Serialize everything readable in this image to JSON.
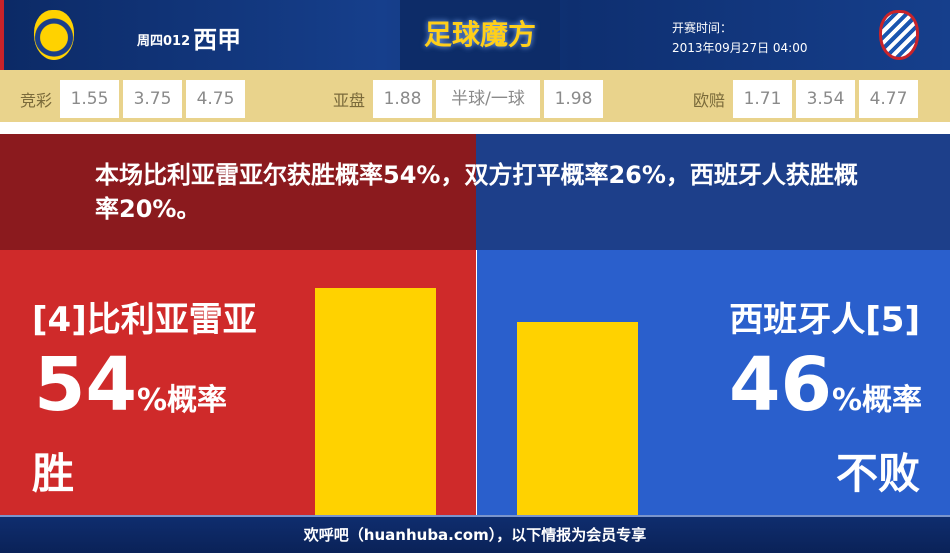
{
  "header": {
    "match_no": "周四012",
    "league": "西甲",
    "brand": "足球魔方",
    "time_label": "开赛时间：",
    "time": "2013年09月27日 04:00",
    "home_logo": "villarreal-crest",
    "away_logo": "espanyol-crest"
  },
  "odds": [
    {
      "label": "竞彩",
      "values": [
        "1.55",
        "3.75",
        "4.75"
      ]
    },
    {
      "label": "亚盘",
      "values": [
        "1.88",
        "半球/一球",
        "1.98"
      ]
    },
    {
      "label": "欧赔",
      "values": [
        "1.71",
        "3.54",
        "4.77"
      ]
    }
  ],
  "summary": "本场比利亚雷亚尔获胜概率54%，双方打平概率26%，西班牙人获胜概率20%。",
  "home": {
    "team": "[4]比利亚雷亚",
    "pct": "54",
    "pct_suffix": "%概率",
    "result": "胜",
    "value": 54
  },
  "away": {
    "team": "西班牙人[5]",
    "pct": "46",
    "pct_suffix": "%概率",
    "result": "不败",
    "value": 46
  },
  "colors": {
    "home": "#cf2a2a",
    "away": "#2a5fcc",
    "bar": "#ffd200"
  },
  "footer": "欢呼吧（huanhuba.com），以下情报为会员专享"
}
